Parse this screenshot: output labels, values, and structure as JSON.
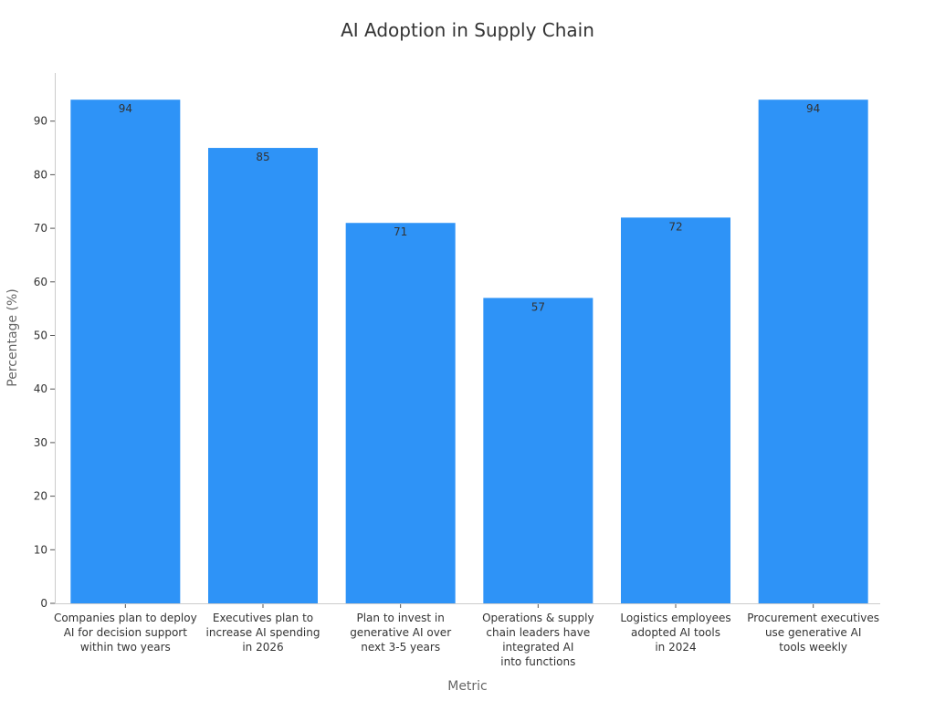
{
  "chart_data": {
    "type": "bar",
    "title": "AI Adoption in Supply Chain",
    "xlabel": "Metric",
    "ylabel": "Percentage (%)",
    "categories": [
      "Companies plan to deploy\nAI for decision support\nwithin two years",
      "Executives plan to\nincrease AI spending\nin 2026",
      "Plan to invest in\ngenerative AI over\nnext 3-5 years",
      "Operations & supply\nchain leaders have\nintegrated AI\ninto functions",
      "Logistics employees\nadopted AI tools\nin 2024",
      "Procurement executives\nuse generative AI\ntools weekly"
    ],
    "values": [
      94,
      85,
      71,
      57,
      72,
      94
    ],
    "ylim": [
      0,
      94
    ],
    "yticks": [
      0,
      10,
      20,
      30,
      40,
      50,
      60,
      70,
      80,
      90
    ],
    "grid": false,
    "legend": "none",
    "bar_color": "#2e93f7",
    "data_labels": true
  }
}
